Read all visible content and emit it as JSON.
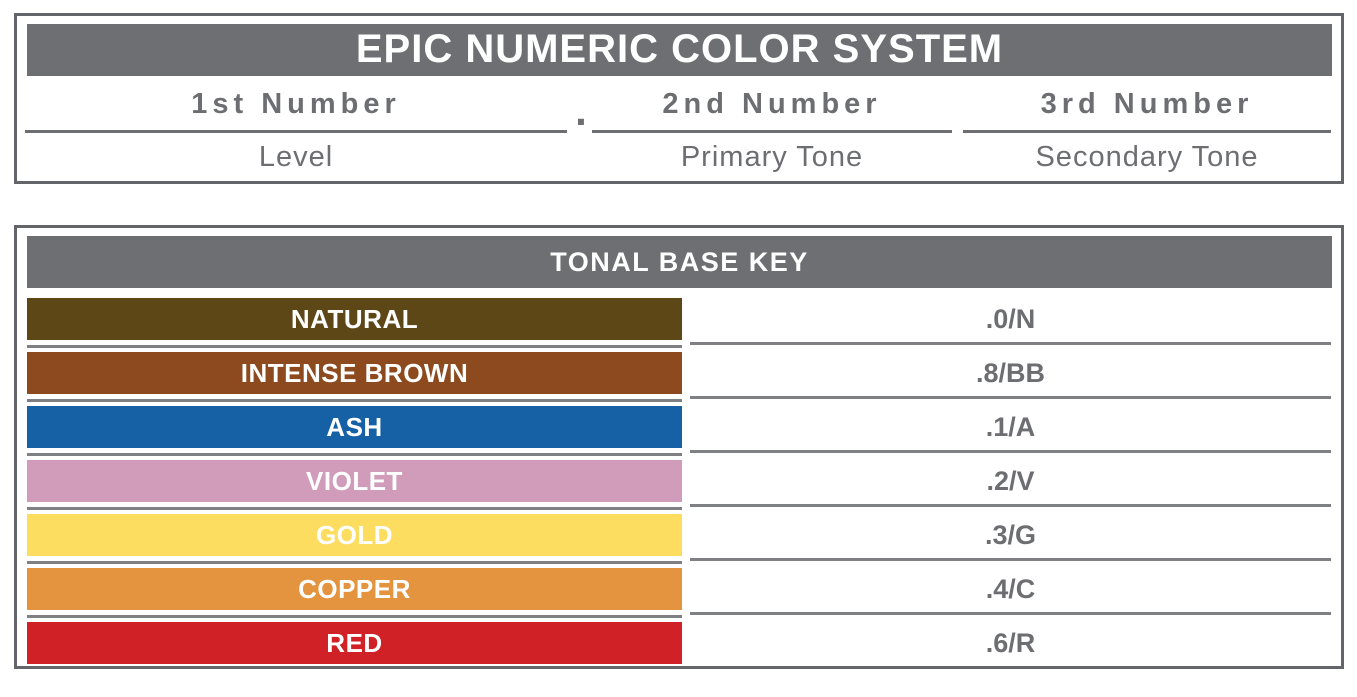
{
  "header": {
    "title": "EPIC NUMERIC COLOR SYSTEM",
    "separator_dot": ".",
    "columns": [
      {
        "number": "1st Number",
        "tone": "Level"
      },
      {
        "number": "2nd Number",
        "tone": "Primary Tone"
      },
      {
        "number": "3rd Number",
        "tone": "Secondary Tone"
      }
    ]
  },
  "tonal_key": {
    "title": "TONAL BASE KEY",
    "rows": [
      {
        "name": "NATURAL",
        "code": ".0/N",
        "color": "#5d4717"
      },
      {
        "name": "INTENSE BROWN",
        "code": ".8/BB",
        "color": "#8c4a1e"
      },
      {
        "name": "ASH",
        "code": ".1/A",
        "color": "#1660a5"
      },
      {
        "name": "VIOLET",
        "code": ".2/V",
        "color": "#d09cba"
      },
      {
        "name": "GOLD",
        "code": ".3/G",
        "color": "#fcdd60"
      },
      {
        "name": "COPPER",
        "code": ".4/C",
        "color": "#e4943f"
      },
      {
        "name": "RED",
        "code": ".6/R",
        "color": "#d02127"
      }
    ]
  },
  "colors": {
    "bar_gray": "#6d6f73",
    "border_gray": "#63656a",
    "line_gray": "#7e8084",
    "text_gray": "#6d6e71"
  }
}
